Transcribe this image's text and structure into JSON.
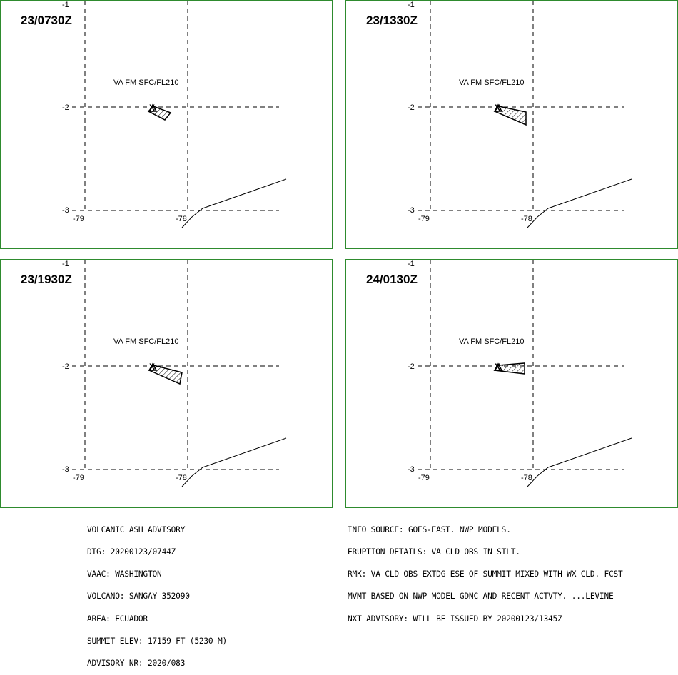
{
  "panels": [
    {
      "time": "23/0730Z",
      "level": "VA FM SFC/FL210",
      "shape": "p1"
    },
    {
      "time": "23/1330Z",
      "level": "VA FM SFC/FL210",
      "shape": "p2"
    },
    {
      "time": "23/1930Z",
      "level": "VA FM SFC/FL210",
      "shape": "p3"
    },
    {
      "time": "24/0130Z",
      "level": "VA FM SFC/FL210",
      "shape": "p4"
    }
  ],
  "axis_labels": {
    "lat_top": "-1",
    "lat_mid": "-2",
    "lat_bot": "-3",
    "lon_left": "-79",
    "lon_right": "-78"
  },
  "volcano_marker": "X",
  "border_color": "#2e8b2e",
  "advisory_left": {
    "lines": [
      "VOLCANIC ASH ADVISORY",
      "DTG: 20200123/0744Z",
      "VAAC: WASHINGTON",
      "VOLCANO: SANGAY 352090",
      "AREA: ECUADOR",
      "SUMMIT ELEV: 17159 FT (5230 M)",
      "ADVISORY NR: 2020/083"
    ]
  },
  "advisory_right": {
    "lines": [
      "INFO SOURCE: GOES-EAST. NWP MODELS.",
      "ERUPTION DETAILS: VA CLD OBS IN STLT.",
      "RMK: VA CLD OBS EXTDG ESE OF SUMMIT MIXED WITH WX CLD. FCST",
      "MVMT BASED ON NWP MODEL GDNC AND RECENT ACTVTY. ...LEVINE",
      "NXT ADVISORY: WILL BE ISSUED BY 20200123/1345Z"
    ]
  }
}
